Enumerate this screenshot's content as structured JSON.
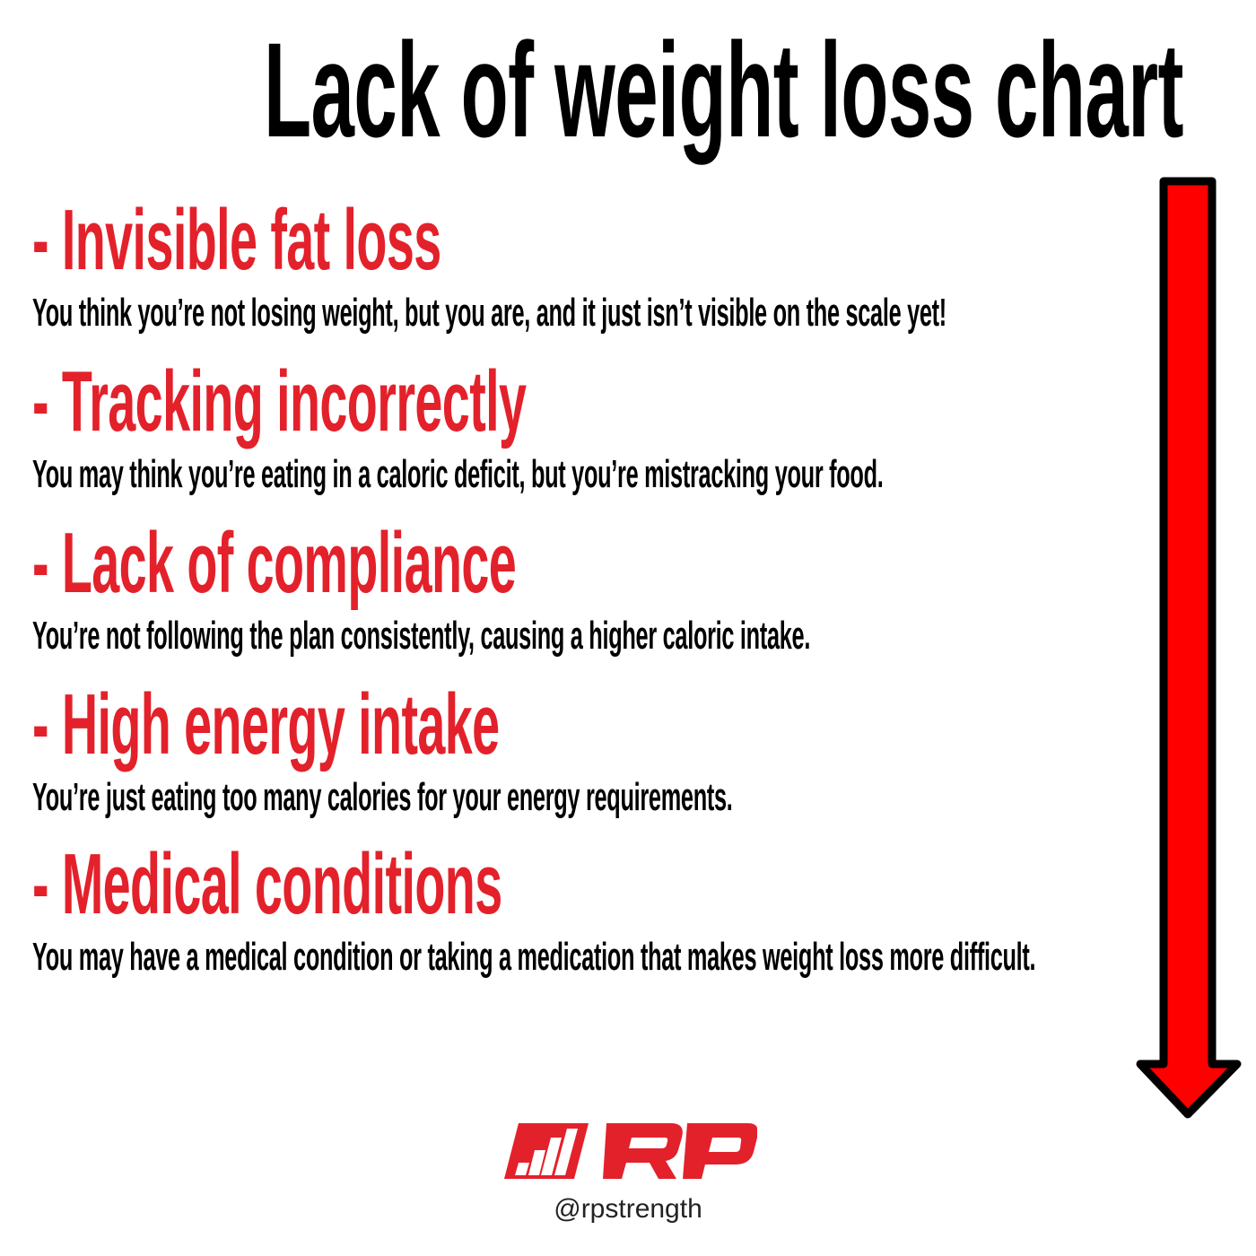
{
  "title": "Lack of weight loss chart",
  "items": [
    {
      "heading": "- Invisible fat loss",
      "description": "You think you’re not losing weight, but you are, and it just isn’t visible on the scale yet!"
    },
    {
      "heading": "- Tracking incorrectly",
      "description": "You may think you’re eating in a caloric deficit, but you’re mistracking your food."
    },
    {
      "heading": "- Lack of compliance",
      "description": "You’re not following the plan consistently, causing a higher caloric intake."
    },
    {
      "heading": "- High energy intake",
      "description": "You’re just eating too many calories for your energy requirements."
    },
    {
      "heading": "- Medical conditions",
      "description": "You may have a medical condition or taking a medication that makes weight loss more difficult."
    }
  ],
  "arrow": {
    "icon": "down-arrow-icon",
    "fill_color": "#ff0000",
    "stroke_color": "#000000"
  },
  "brand": {
    "logo_text": "RP",
    "logo_color": "#e3212b",
    "handle": "@rpstrength"
  }
}
